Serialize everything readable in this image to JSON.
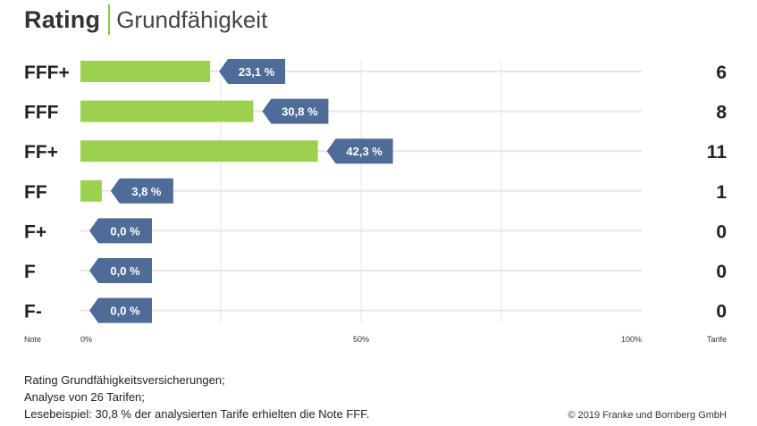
{
  "title": {
    "main": "Rating",
    "sub": "Grundfähigkeit"
  },
  "colors": {
    "bar": "#9cd051",
    "label": "#4f6b98",
    "grid": "#e6e6e6",
    "separator": "#8cc63f"
  },
  "chart_data": {
    "type": "bar",
    "orientation": "horizontal",
    "categories": [
      "FFF+",
      "FFF",
      "FF+",
      "FF",
      "F+",
      "F",
      "F-"
    ],
    "values": [
      23.1,
      30.8,
      42.3,
      3.8,
      0.0,
      0.0,
      0.0
    ],
    "value_labels": [
      "23,1 %",
      "30,8 %",
      "42,3 %",
      "3,8 %",
      "0,0 %",
      "0,0 %",
      "0,0 %"
    ],
    "counts": [
      6,
      8,
      11,
      1,
      0,
      0,
      0
    ],
    "xlim": [
      0,
      100
    ],
    "xticks": [
      "0%",
      "50%",
      "100%"
    ],
    "left_axis_label": "Note",
    "right_axis_label": "Tarife",
    "grid": true
  },
  "footnote": {
    "line1": "Rating Grundfähigkeitsversicherungen;",
    "line2": "Analyse von 26 Tarifen;",
    "line3": "Lesebeispiel: 30,8 % der analysierten Tarife erhielten die Note FFF."
  },
  "copyright": "© 2019 Franke und Bornberg GmbH"
}
